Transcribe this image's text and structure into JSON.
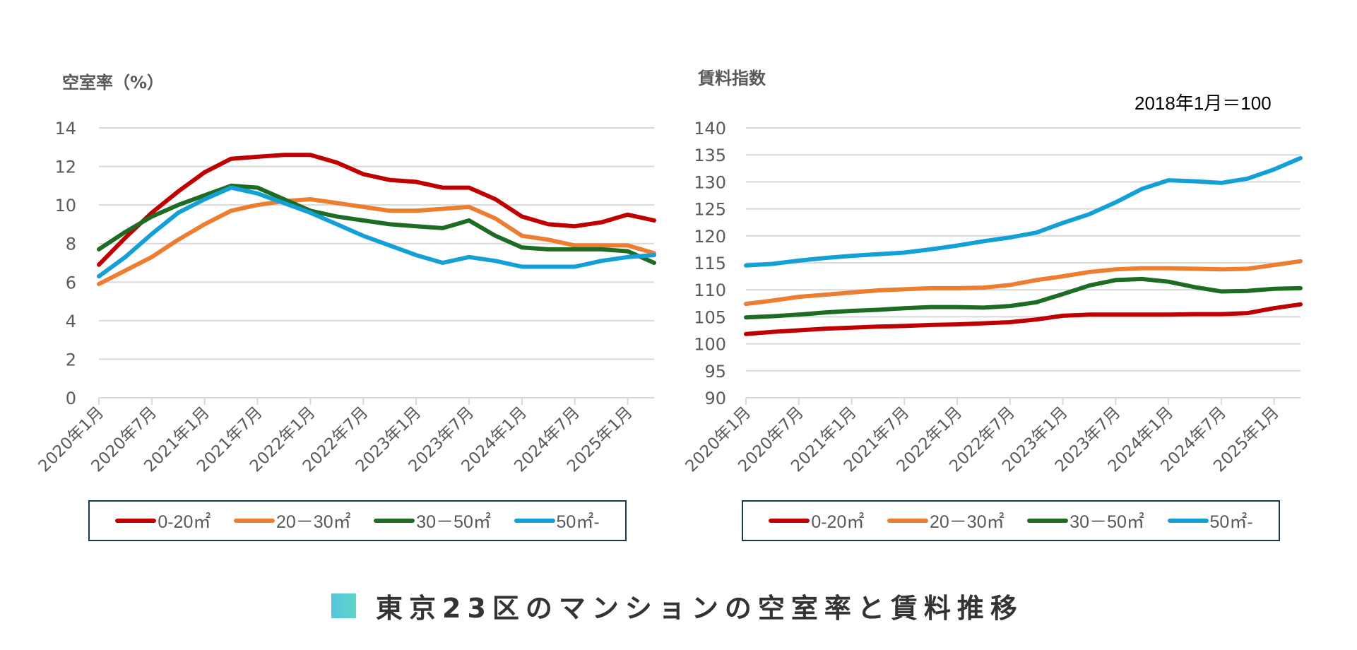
{
  "main_title": "東京23区のマンションの空室率と賃料推移",
  "colors": {
    "series": [
      "#c00000",
      "#ed7d31",
      "#1e6b24",
      "#12a0d7"
    ],
    "grid": "#d9d9d9",
    "axis_text": "#595959",
    "legend_border": "#17394d"
  },
  "chart_data": [
    {
      "type": "line",
      "title": "空室率（%）",
      "xlabel": "",
      "ylabel": "空室率（%）",
      "ylim": [
        0,
        14
      ],
      "yticks": [
        "0",
        "2",
        "4",
        "6",
        "8",
        "10",
        "12",
        "14"
      ],
      "grid": true,
      "legend_position": "bottom",
      "xtick_labels": [
        "2020年1月",
        "2020年7月",
        "2021年1月",
        "2021年7月",
        "2022年1月",
        "2022年7月",
        "2023年1月",
        "2023年7月",
        "2024年1月",
        "2024年7月",
        "2025年1月"
      ],
      "x": [
        "2020-01",
        "2020-04",
        "2020-07",
        "2020-10",
        "2021-01",
        "2021-04",
        "2021-07",
        "2021-10",
        "2022-01",
        "2022-04",
        "2022-07",
        "2022-10",
        "2023-01",
        "2023-04",
        "2023-07",
        "2023-10",
        "2024-01",
        "2024-04",
        "2024-07",
        "2024-10",
        "2025-01",
        "2025-04"
      ],
      "series": [
        {
          "name": "0-20㎡",
          "values": [
            6.9,
            8.3,
            9.6,
            10.7,
            11.7,
            12.4,
            12.5,
            12.6,
            12.6,
            12.2,
            11.6,
            11.3,
            11.2,
            10.9,
            10.9,
            10.3,
            9.4,
            9.0,
            8.9,
            9.1,
            9.5,
            9.2
          ]
        },
        {
          "name": "20－30㎡",
          "values": [
            5.9,
            6.6,
            7.3,
            8.2,
            9.0,
            9.7,
            10.0,
            10.2,
            10.3,
            10.1,
            9.9,
            9.7,
            9.7,
            9.8,
            9.9,
            9.3,
            8.4,
            8.2,
            7.9,
            7.9,
            7.9,
            7.5
          ]
        },
        {
          "name": "30－50㎡",
          "values": [
            7.7,
            8.6,
            9.4,
            10.0,
            10.5,
            11.0,
            10.9,
            10.3,
            9.7,
            9.4,
            9.2,
            9.0,
            8.9,
            8.8,
            9.2,
            8.4,
            7.8,
            7.7,
            7.7,
            7.7,
            7.6,
            7.0
          ]
        },
        {
          "name": "50㎡-",
          "values": [
            6.3,
            7.3,
            8.5,
            9.6,
            10.3,
            10.9,
            10.6,
            10.1,
            9.6,
            9.0,
            8.4,
            7.9,
            7.4,
            7.0,
            7.3,
            7.1,
            6.8,
            6.8,
            6.8,
            7.1,
            7.3,
            7.4
          ]
        }
      ]
    },
    {
      "type": "line",
      "title": "賃料指数",
      "annotation": "2018年1月＝100",
      "xlabel": "",
      "ylabel": "賃料指数",
      "ylim": [
        90,
        140
      ],
      "yticks": [
        "90",
        "95",
        "100",
        "105",
        "110",
        "115",
        "120",
        "125",
        "130",
        "135",
        "140"
      ],
      "grid": true,
      "legend_position": "bottom",
      "xtick_labels": [
        "2020年1月",
        "2020年7月",
        "2021年1月",
        "2021年7月",
        "2022年1月",
        "2022年7月",
        "2023年1月",
        "2023年7月",
        "2024年1月",
        "2024年7月",
        "2025年1月"
      ],
      "x": [
        "2020-01",
        "2020-04",
        "2020-07",
        "2020-10",
        "2021-01",
        "2021-04",
        "2021-07",
        "2021-10",
        "2022-01",
        "2022-04",
        "2022-07",
        "2022-10",
        "2023-01",
        "2023-04",
        "2023-07",
        "2023-10",
        "2024-01",
        "2024-04",
        "2024-07",
        "2024-10",
        "2025-01",
        "2025-04"
      ],
      "series": [
        {
          "name": "0-20㎡",
          "values": [
            101.8,
            102.2,
            102.5,
            102.8,
            103.0,
            103.2,
            103.3,
            103.5,
            103.6,
            103.8,
            104.0,
            104.5,
            105.2,
            105.4,
            105.4,
            105.4,
            105.4,
            105.5,
            105.5,
            105.7,
            106.6,
            107.3
          ]
        },
        {
          "name": "20－30㎡",
          "values": [
            107.4,
            108.0,
            108.7,
            109.1,
            109.5,
            109.9,
            110.1,
            110.3,
            110.3,
            110.4,
            110.9,
            111.8,
            112.5,
            113.3,
            113.8,
            114.0,
            114.0,
            113.9,
            113.8,
            113.9,
            114.6,
            115.3
          ]
        },
        {
          "name": "30－50㎡",
          "values": [
            104.9,
            105.1,
            105.4,
            105.8,
            106.1,
            106.3,
            106.6,
            106.8,
            106.8,
            106.7,
            107.0,
            107.7,
            109.2,
            110.8,
            111.8,
            112.0,
            111.5,
            110.5,
            109.7,
            109.8,
            110.2,
            110.3
          ]
        },
        {
          "name": "50㎡-",
          "values": [
            114.5,
            114.8,
            115.4,
            115.9,
            116.3,
            116.6,
            116.9,
            117.5,
            118.2,
            119.0,
            119.7,
            120.6,
            122.4,
            124.0,
            126.2,
            128.7,
            130.3,
            130.1,
            129.8,
            130.6,
            132.3,
            134.4
          ]
        }
      ]
    }
  ],
  "legend": {
    "labels": [
      "0-20㎡",
      "20－30㎡",
      "30－50㎡",
      "50㎡-"
    ]
  }
}
